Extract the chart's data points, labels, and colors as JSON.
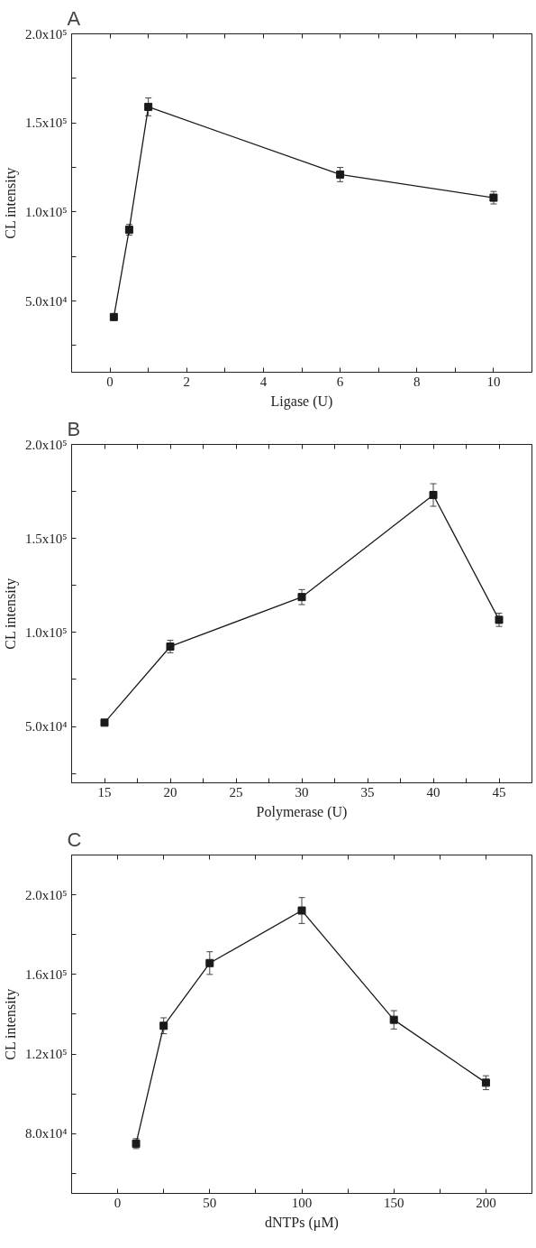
{
  "chart_data": [
    {
      "type": "line",
      "title": "A",
      "xlabel": "Ligase (U)",
      "ylabel": "CL intensity",
      "color": "#1a1a1a",
      "marker": "square",
      "line_style": "solid",
      "x": [
        0.1,
        0.5,
        1,
        6,
        10
      ],
      "values": [
        41000,
        90000,
        159000,
        121000,
        108000
      ],
      "errors": [
        null,
        3000,
        5000,
        4000,
        3500
      ],
      "xlim": [
        -1,
        11
      ],
      "ylim": [
        10000,
        200000
      ],
      "xticks": [
        0,
        {
          "value": 1,
          "label": null
        },
        2,
        {
          "value": 3,
          "label": null
        },
        4,
        {
          "value": 5,
          "label": null
        },
        6,
        {
          "value": 7,
          "label": null
        },
        8,
        {
          "value": 9,
          "label": null
        },
        10
      ],
      "yticks": [
        {
          "value": 25000,
          "label": null
        },
        {
          "value": 50000,
          "label": "5.0x10⁴"
        },
        {
          "value": 75000,
          "label": null
        },
        {
          "value": 100000,
          "label": "1.0x10⁵"
        },
        {
          "value": 125000,
          "label": null
        },
        {
          "value": 150000,
          "label": "1.5x10⁵"
        },
        {
          "value": 175000,
          "label": null
        },
        {
          "value": 200000,
          "label": "2.0x10⁵"
        }
      ]
    },
    {
      "type": "line",
      "title": "B",
      "xlabel": "Polymerase (U)",
      "ylabel": "CL intensity",
      "color": "#1a1a1a",
      "marker": "square",
      "line_style": "solid",
      "x": [
        15,
        20,
        30,
        40,
        45
      ],
      "values": [
        52000,
        92500,
        118800,
        173100,
        106700
      ],
      "errors": [
        null,
        3300,
        4000,
        6000,
        3500
      ],
      "xlim": [
        12.5,
        47.5
      ],
      "ylim": [
        20000,
        200000
      ],
      "xticks": [
        15,
        {
          "value": 17.5,
          "label": null
        },
        20,
        {
          "value": 22.5,
          "label": null
        },
        25,
        {
          "value": 27.5,
          "label": null
        },
        30,
        {
          "value": 32.5,
          "label": null
        },
        35,
        {
          "value": 37.5,
          "label": null
        },
        40,
        {
          "value": 42.5,
          "label": null
        },
        45
      ],
      "yticks": [
        {
          "value": 25000,
          "label": null
        },
        {
          "value": 50000,
          "label": "5.0x10⁴"
        },
        {
          "value": 75000,
          "label": null
        },
        {
          "value": 100000,
          "label": "1.0x10⁵"
        },
        {
          "value": 125000,
          "label": null
        },
        {
          "value": 150000,
          "label": "1.5x10⁵"
        },
        {
          "value": 175000,
          "label": null
        },
        {
          "value": 200000,
          "label": "2.0x10⁵"
        }
      ]
    },
    {
      "type": "line",
      "title": "C",
      "xlabel": "dNTPs (μM)",
      "ylabel": "CL intensity",
      "color": "#1a1a1a",
      "marker": "square",
      "line_style": "solid",
      "x": [
        10,
        25,
        50,
        100,
        150,
        200
      ],
      "values": [
        75000,
        134200,
        165700,
        192100,
        137200,
        105600
      ],
      "errors": [
        2500,
        4000,
        5700,
        6500,
        4600,
        3500
      ],
      "xlim": [
        -25,
        225
      ],
      "ylim": [
        50000,
        220000
      ],
      "xticks": [
        0,
        {
          "value": 25,
          "label": null
        },
        50,
        {
          "value": 75,
          "label": null
        },
        100,
        {
          "value": 125,
          "label": null
        },
        150,
        {
          "value": 175,
          "label": null
        },
        200
      ],
      "yticks": [
        {
          "value": 60000,
          "label": null
        },
        {
          "value": 80000,
          "label": "8.0x10⁴"
        },
        {
          "value": 100000,
          "label": null
        },
        {
          "value": 120000,
          "label": "1.2x10⁵"
        },
        {
          "value": 140000,
          "label": null
        },
        {
          "value": 160000,
          "label": "1.6x10⁵"
        },
        {
          "value": 180000,
          "label": null
        },
        {
          "value": 200000,
          "label": "2.0x10⁵"
        }
      ]
    }
  ]
}
